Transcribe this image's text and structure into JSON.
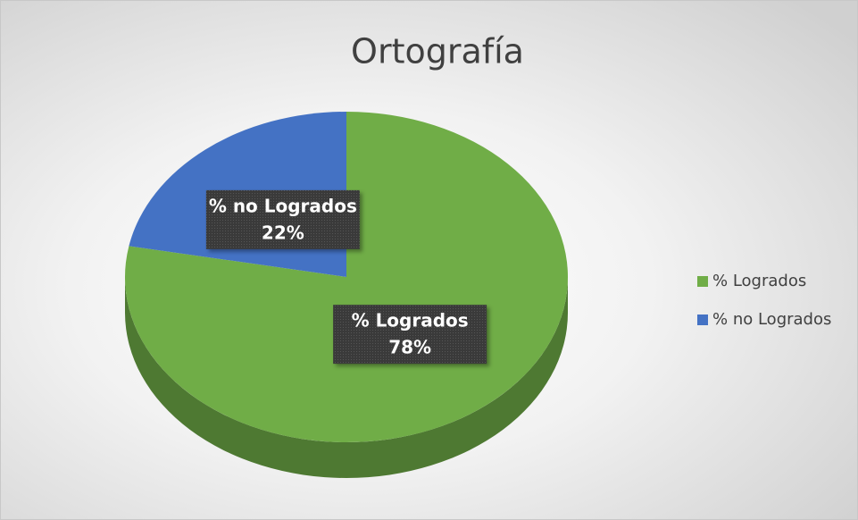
{
  "chart_data": {
    "type": "pie",
    "title": "Ortografía",
    "categories": [
      "% Logrados",
      "% no Logrados"
    ],
    "values": [
      78,
      22
    ],
    "value_labels": [
      "78%",
      "22%"
    ],
    "colors": [
      "#70ad47",
      "#4472c4"
    ],
    "legend": "right"
  }
}
